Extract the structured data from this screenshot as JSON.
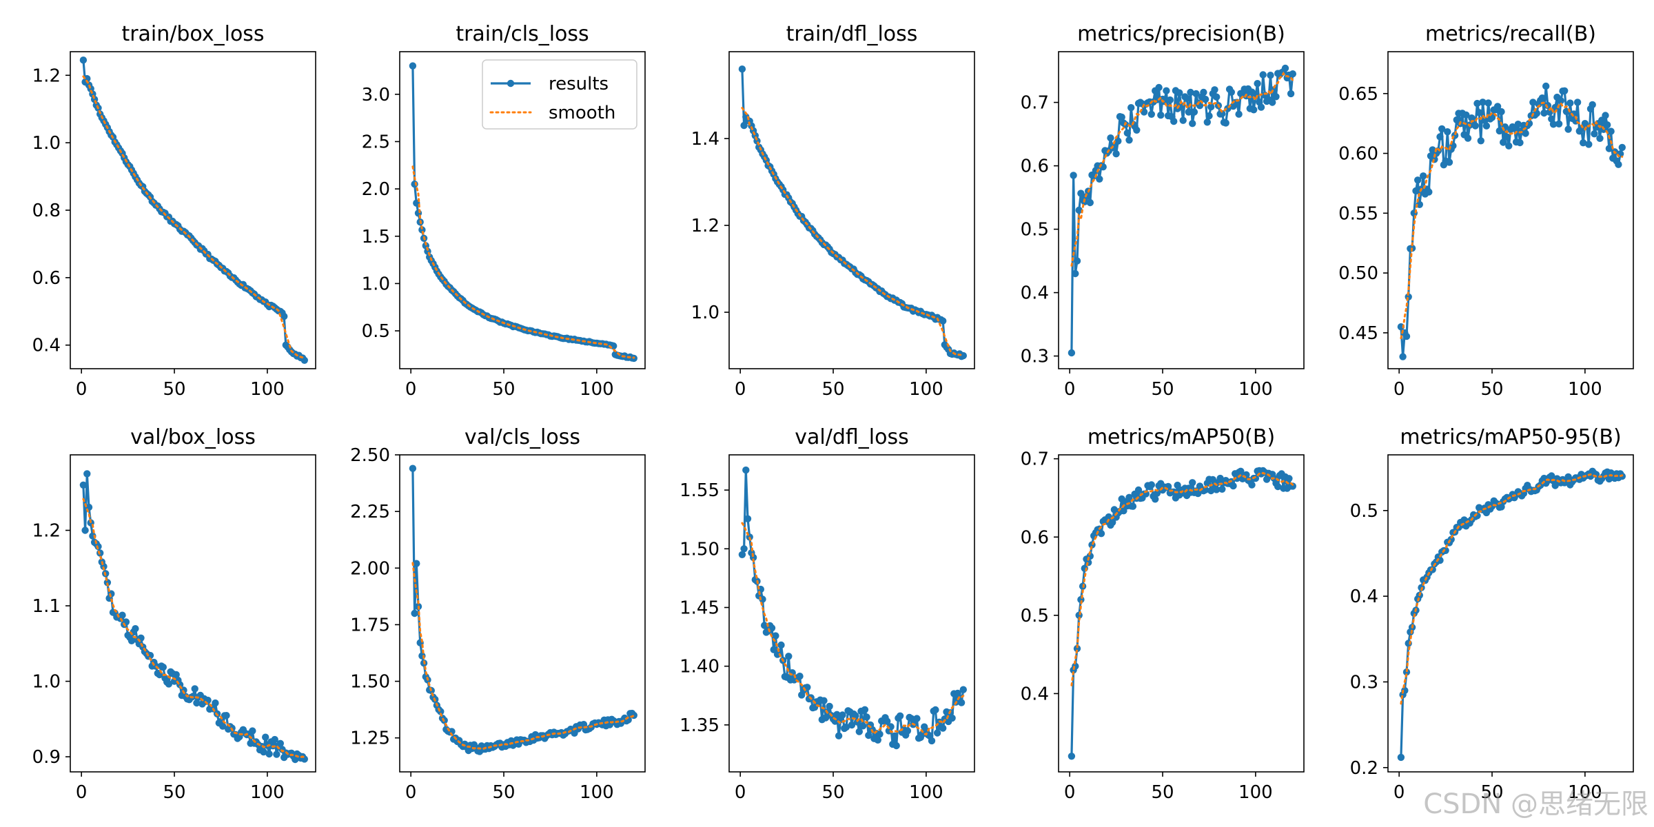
{
  "colors": {
    "results": "#1f77b4",
    "smooth": "#ff7f0e",
    "axis": "#000000"
  },
  "watermark": "CSDN @思绪无限",
  "legend": {
    "results": "results",
    "smooth": "smooth"
  },
  "chart_data": [
    {
      "type": "line",
      "title": "train/box_loss",
      "xlim": [
        -6,
        126
      ],
      "ylim": [
        0.33,
        1.27
      ],
      "xticks": [
        0,
        50,
        100
      ],
      "yticks": [
        0.4,
        0.6,
        0.8,
        1.0,
        1.2
      ],
      "ytick_labels": [
        "0.4",
        "0.6",
        "0.8",
        "1.0",
        "1.2"
      ],
      "anchors": [
        [
          1,
          1.245
        ],
        [
          2,
          1.18
        ],
        [
          3,
          1.19
        ],
        [
          5,
          1.16
        ],
        [
          10,
          1.085
        ],
        [
          20,
          0.985
        ],
        [
          30,
          0.89
        ],
        [
          40,
          0.815
        ],
        [
          50,
          0.76
        ],
        [
          60,
          0.71
        ],
        [
          70,
          0.655
        ],
        [
          80,
          0.605
        ],
        [
          90,
          0.565
        ],
        [
          100,
          0.52
        ],
        [
          107,
          0.5
        ],
        [
          109,
          0.485
        ],
        [
          110,
          0.4
        ],
        [
          113,
          0.38
        ],
        [
          120,
          0.355
        ]
      ],
      "noise": 0.004,
      "seed": 11
    },
    {
      "type": "line",
      "title": "train/cls_loss",
      "xlim": [
        -6,
        126
      ],
      "ylim": [
        0.1,
        3.45
      ],
      "xticks": [
        0,
        50,
        100
      ],
      "yticks": [
        0.5,
        1.0,
        1.5,
        2.0,
        2.5,
        3.0
      ],
      "ytick_labels": [
        "0.5",
        "1.0",
        "1.5",
        "2.0",
        "2.5",
        "3.0"
      ],
      "anchors": [
        [
          1,
          3.3
        ],
        [
          2,
          2.05
        ],
        [
          3,
          1.85
        ],
        [
          5,
          1.65
        ],
        [
          8,
          1.4
        ],
        [
          10,
          1.28
        ],
        [
          15,
          1.1
        ],
        [
          20,
          0.97
        ],
        [
          30,
          0.78
        ],
        [
          40,
          0.66
        ],
        [
          50,
          0.58
        ],
        [
          60,
          0.52
        ],
        [
          70,
          0.47
        ],
        [
          80,
          0.43
        ],
        [
          90,
          0.4
        ],
        [
          100,
          0.37
        ],
        [
          109,
          0.34
        ],
        [
          110,
          0.25
        ],
        [
          120,
          0.21
        ]
      ],
      "noise": 0.006,
      "seed": 12,
      "legend": true
    },
    {
      "type": "line",
      "title": "train/dfl_loss",
      "xlim": [
        -6,
        126
      ],
      "ylim": [
        0.87,
        1.6
      ],
      "xticks": [
        0,
        50,
        100
      ],
      "yticks": [
        1.0,
        1.2,
        1.4
      ],
      "ytick_labels": [
        "1.0",
        "1.2",
        "1.4"
      ],
      "anchors": [
        [
          1,
          1.56
        ],
        [
          2,
          1.43
        ],
        [
          3,
          1.45
        ],
        [
          5,
          1.44
        ],
        [
          10,
          1.38
        ],
        [
          20,
          1.3
        ],
        [
          30,
          1.235
        ],
        [
          40,
          1.18
        ],
        [
          50,
          1.135
        ],
        [
          60,
          1.1
        ],
        [
          70,
          1.065
        ],
        [
          80,
          1.035
        ],
        [
          90,
          1.01
        ],
        [
          100,
          0.995
        ],
        [
          109,
          0.98
        ],
        [
          110,
          0.925
        ],
        [
          113,
          0.905
        ],
        [
          120,
          0.9
        ]
      ],
      "noise": 0.003,
      "seed": 13
    },
    {
      "type": "line",
      "title": "metrics/precision(B)",
      "xlim": [
        -6,
        126
      ],
      "ylim": [
        0.28,
        0.78
      ],
      "xticks": [
        0,
        50,
        100
      ],
      "yticks": [
        0.3,
        0.4,
        0.5,
        0.6,
        0.7
      ],
      "ytick_labels": [
        "0.3",
        "0.4",
        "0.5",
        "0.6",
        "0.7"
      ],
      "anchors": [
        [
          1,
          0.305
        ],
        [
          2,
          0.585
        ],
        [
          3,
          0.43
        ],
        [
          5,
          0.53
        ],
        [
          10,
          0.56
        ],
        [
          15,
          0.6
        ],
        [
          20,
          0.62
        ],
        [
          30,
          0.665
        ],
        [
          40,
          0.685
        ],
        [
          50,
          0.705
        ],
        [
          60,
          0.695
        ],
        [
          70,
          0.695
        ],
        [
          80,
          0.695
        ],
        [
          90,
          0.7
        ],
        [
          100,
          0.71
        ],
        [
          110,
          0.72
        ],
        [
          120,
          0.745
        ]
      ],
      "noise": 0.03,
      "seed": 14
    },
    {
      "type": "line",
      "title": "metrics/recall(B)",
      "xlim": [
        -6,
        126
      ],
      "ylim": [
        0.42,
        0.685
      ],
      "xticks": [
        0,
        50,
        100
      ],
      "yticks": [
        0.45,
        0.5,
        0.55,
        0.6,
        0.65
      ],
      "ytick_labels": [
        "0.45",
        "0.50",
        "0.55",
        "0.60",
        "0.65"
      ],
      "anchors": [
        [
          1,
          0.455
        ],
        [
          2,
          0.43
        ],
        [
          3,
          0.45
        ],
        [
          5,
          0.48
        ],
        [
          8,
          0.55
        ],
        [
          12,
          0.57
        ],
        [
          20,
          0.6
        ],
        [
          30,
          0.615
        ],
        [
          40,
          0.625
        ],
        [
          50,
          0.63
        ],
        [
          60,
          0.62
        ],
        [
          70,
          0.625
        ],
        [
          80,
          0.64
        ],
        [
          90,
          0.635
        ],
        [
          100,
          0.625
        ],
        [
          110,
          0.62
        ],
        [
          120,
          0.605
        ]
      ],
      "noise": 0.018,
      "seed": 15
    },
    {
      "type": "line",
      "title": "val/box_loss",
      "xlim": [
        -6,
        126
      ],
      "ylim": [
        0.88,
        1.3
      ],
      "xticks": [
        0,
        50,
        100
      ],
      "yticks": [
        0.9,
        1.0,
        1.1,
        1.2
      ],
      "ytick_labels": [
        "0.9",
        "1.0",
        "1.1",
        "1.2"
      ],
      "anchors": [
        [
          1,
          1.26
        ],
        [
          2,
          1.2
        ],
        [
          3,
          1.275
        ],
        [
          5,
          1.21
        ],
        [
          10,
          1.17
        ],
        [
          15,
          1.11
        ],
        [
          20,
          1.085
        ],
        [
          30,
          1.055
        ],
        [
          40,
          1.02
        ],
        [
          50,
          1.0
        ],
        [
          60,
          0.98
        ],
        [
          70,
          0.965
        ],
        [
          80,
          0.94
        ],
        [
          90,
          0.93
        ],
        [
          100,
          0.915
        ],
        [
          110,
          0.905
        ],
        [
          120,
          0.897
        ]
      ],
      "noise": 0.012,
      "seed": 16
    },
    {
      "type": "line",
      "title": "val/cls_loss",
      "xlim": [
        -6,
        126
      ],
      "ylim": [
        1.1,
        2.5
      ],
      "xticks": [
        0,
        50,
        100
      ],
      "yticks": [
        1.25,
        1.5,
        1.75,
        2.0,
        2.25,
        2.5
      ],
      "ytick_labels": [
        "1.25",
        "1.50",
        "1.75",
        "2.00",
        "2.25",
        "2.50"
      ],
      "anchors": [
        [
          1,
          2.44
        ],
        [
          2,
          1.8
        ],
        [
          3,
          2.02
        ],
        [
          5,
          1.67
        ],
        [
          8,
          1.52
        ],
        [
          12,
          1.43
        ],
        [
          20,
          1.28
        ],
        [
          30,
          1.21
        ],
        [
          40,
          1.2
        ],
        [
          50,
          1.22
        ],
        [
          60,
          1.24
        ],
        [
          70,
          1.26
        ],
        [
          80,
          1.27
        ],
        [
          90,
          1.29
        ],
        [
          100,
          1.31
        ],
        [
          110,
          1.32
        ],
        [
          120,
          1.35
        ]
      ],
      "noise": 0.015,
      "seed": 17
    },
    {
      "type": "line",
      "title": "val/dfl_loss",
      "xlim": [
        -6,
        126
      ],
      "ylim": [
        1.31,
        1.58
      ],
      "xticks": [
        0,
        50,
        100
      ],
      "yticks": [
        1.35,
        1.4,
        1.45,
        1.5,
        1.55
      ],
      "ytick_labels": [
        "1.35",
        "1.40",
        "1.45",
        "1.50",
        "1.55"
      ],
      "anchors": [
        [
          1,
          1.495
        ],
        [
          2,
          1.5
        ],
        [
          3,
          1.567
        ],
        [
          5,
          1.51
        ],
        [
          10,
          1.46
        ],
        [
          15,
          1.43
        ],
        [
          20,
          1.41
        ],
        [
          30,
          1.39
        ],
        [
          40,
          1.365
        ],
        [
          50,
          1.355
        ],
        [
          60,
          1.35
        ],
        [
          70,
          1.35
        ],
        [
          80,
          1.345
        ],
        [
          90,
          1.345
        ],
        [
          100,
          1.345
        ],
        [
          110,
          1.355
        ],
        [
          120,
          1.38
        ]
      ],
      "noise": 0.013,
      "seed": 18
    },
    {
      "type": "line",
      "title": "metrics/mAP50(B)",
      "xlim": [
        -6,
        126
      ],
      "ylim": [
        0.3,
        0.705
      ],
      "xticks": [
        0,
        50,
        100
      ],
      "yticks": [
        0.4,
        0.5,
        0.6,
        0.7
      ],
      "ytick_labels": [
        "0.4",
        "0.5",
        "0.6",
        "0.7"
      ],
      "anchors": [
        [
          1,
          0.32
        ],
        [
          2,
          0.43
        ],
        [
          3,
          0.435
        ],
        [
          5,
          0.5
        ],
        [
          8,
          0.56
        ],
        [
          12,
          0.59
        ],
        [
          20,
          0.62
        ],
        [
          30,
          0.645
        ],
        [
          40,
          0.655
        ],
        [
          50,
          0.66
        ],
        [
          60,
          0.66
        ],
        [
          70,
          0.665
        ],
        [
          80,
          0.67
        ],
        [
          90,
          0.675
        ],
        [
          100,
          0.675
        ],
        [
          110,
          0.675
        ],
        [
          120,
          0.665
        ]
      ],
      "noise": 0.01,
      "seed": 19
    },
    {
      "type": "line",
      "title": "metrics/mAP50-95(B)",
      "xlim": [
        -6,
        126
      ],
      "ylim": [
        0.195,
        0.565
      ],
      "xticks": [
        0,
        50,
        100
      ],
      "yticks": [
        0.2,
        0.3,
        0.4,
        0.5
      ],
      "ytick_labels": [
        "0.2",
        "0.3",
        "0.4",
        "0.5"
      ],
      "anchors": [
        [
          1,
          0.212
        ],
        [
          2,
          0.285
        ],
        [
          3,
          0.29
        ],
        [
          5,
          0.345
        ],
        [
          8,
          0.38
        ],
        [
          12,
          0.41
        ],
        [
          20,
          0.44
        ],
        [
          30,
          0.475
        ],
        [
          40,
          0.495
        ],
        [
          50,
          0.505
        ],
        [
          60,
          0.515
        ],
        [
          70,
          0.525
        ],
        [
          80,
          0.535
        ],
        [
          90,
          0.535
        ],
        [
          100,
          0.54
        ],
        [
          110,
          0.54
        ],
        [
          120,
          0.54
        ]
      ],
      "noise": 0.006,
      "seed": 20
    }
  ]
}
